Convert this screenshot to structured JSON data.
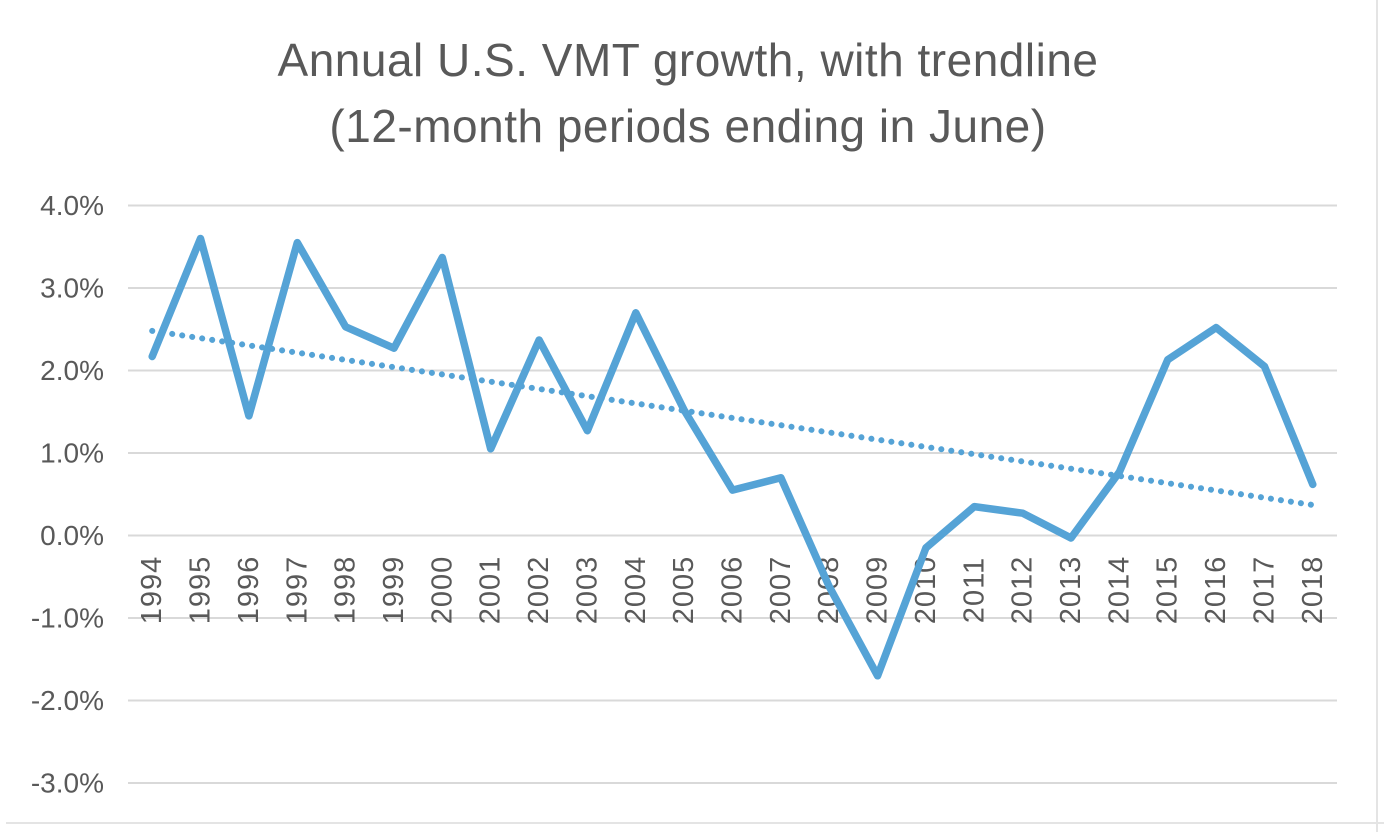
{
  "chart_data": {
    "type": "line",
    "title": "Annual U.S. VMT growth, with trendline",
    "subtitle": "(12-month periods ending in June)",
    "categories": [
      "1994",
      "1995",
      "1996",
      "1997",
      "1998",
      "1999",
      "2000",
      "2001",
      "2002",
      "2003",
      "2004",
      "2005",
      "2006",
      "2007",
      "2008",
      "2009",
      "2010",
      "2011",
      "2012",
      "2013",
      "2014",
      "2015",
      "2016",
      "2017",
      "2018"
    ],
    "series": [
      {
        "name": "Annual VMT growth (%)",
        "style": "solid",
        "values": [
          2.17,
          3.6,
          1.45,
          3.55,
          2.53,
          2.27,
          3.37,
          1.05,
          2.37,
          1.27,
          2.7,
          1.52,
          0.55,
          0.7,
          -0.62,
          -1.7,
          -0.15,
          0.35,
          0.27,
          -0.03,
          0.77,
          2.13,
          2.52,
          2.05,
          0.62
        ]
      },
      {
        "name": "Linear trendline",
        "style": "dotted",
        "trend_start": 2.48,
        "trend_end": 0.37
      }
    ],
    "y_axis": {
      "unit": "%",
      "min": -3.0,
      "max": 4.0,
      "tick_values": [
        4,
        3,
        2,
        1,
        0,
        -1,
        -2,
        -3
      ],
      "tick_labels": [
        "4.0%",
        "3.0%",
        "2.0%",
        "1.0%",
        "0.0%",
        "-1.0%",
        "-2.0%",
        "-3.0%"
      ]
    },
    "x_axis": {
      "label_rotation_deg": -90
    },
    "grid": "horizontal",
    "legend": "none",
    "colors": {
      "line": "#55a3d6",
      "trendline": "#55a3d6",
      "gridline": "#d9d9d9",
      "text": "#595959",
      "page_edge": "#e4e4e4"
    }
  }
}
